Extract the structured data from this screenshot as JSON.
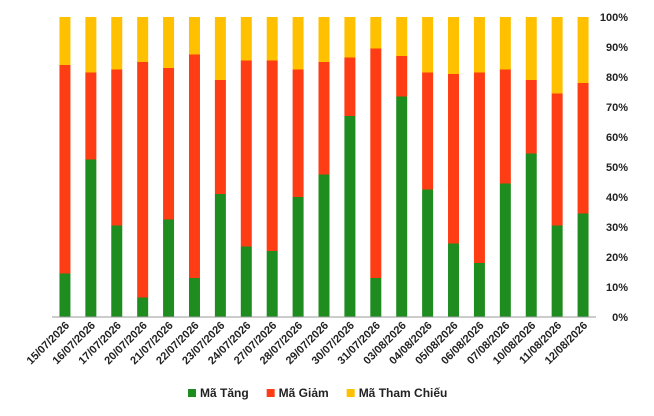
{
  "chart_data": {
    "type": "bar",
    "stacked": true,
    "percent": true,
    "categories": [
      "15/07/2026",
      "16/07/2026",
      "17/07/2026",
      "20/07/2026",
      "21/07/2026",
      "22/07/2026",
      "23/07/2026",
      "24/07/2026",
      "27/07/2026",
      "28/07/2026",
      "29/07/2026",
      "30/07/2026",
      "31/07/2026",
      "03/08/2026",
      "04/08/2026",
      "05/08/2026",
      "06/08/2026",
      "07/08/2026",
      "10/08/2026",
      "11/08/2026",
      "12/08/2026"
    ],
    "series": [
      {
        "name": "Mã Tăng",
        "color": "#1e8c1e",
        "values": [
          14.5,
          52.5,
          30.5,
          6.5,
          32.5,
          13,
          41,
          23.5,
          22,
          40,
          47.5,
          67,
          13,
          73.5,
          42.5,
          24.5,
          18,
          44.5,
          54.5,
          30.5,
          34.5
        ]
      },
      {
        "name": "Mã Giảm",
        "color": "#ff3d14",
        "values": [
          69.5,
          29,
          52,
          78.5,
          50.5,
          74.5,
          38,
          62,
          63.5,
          42.5,
          37.5,
          19.5,
          76.5,
          13.5,
          39,
          56.5,
          63.5,
          38,
          24.5,
          44,
          43.5
        ]
      },
      {
        "name": "Mã Tham Chiếu",
        "color": "#ffc000",
        "values": [
          16,
          18.5,
          17.5,
          15,
          17,
          12.5,
          21,
          14.5,
          14.5,
          17.5,
          15,
          13.5,
          10.5,
          13,
          18.5,
          19,
          18.5,
          17.5,
          21,
          25.5,
          22
        ]
      }
    ],
    "yaxis": {
      "side": "right",
      "ylim": [
        0,
        100
      ],
      "ticks": [
        "0%",
        "10%",
        "20%",
        "30%",
        "40%",
        "50%",
        "60%",
        "70%",
        "80%",
        "90%",
        "100%"
      ]
    },
    "grid": false,
    "legend": "bottom",
    "xlabel": "",
    "ylabel": "",
    "title": ""
  }
}
